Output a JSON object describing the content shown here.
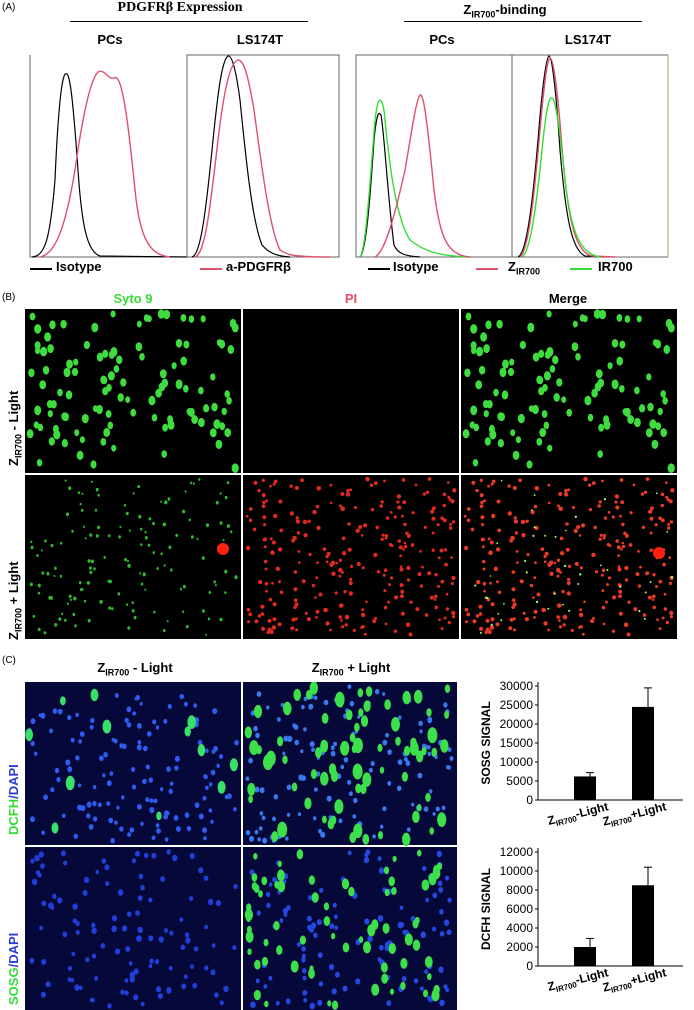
{
  "panelA": {
    "label": "(A)",
    "group1_title": "PDGFRβ Expression",
    "group2_title_main": "Z",
    "group2_title_sub": "IR700",
    "group2_title_tail": "-binding",
    "cols": [
      "PCs",
      "LS174T",
      "PCs",
      "LS174T"
    ],
    "legend1": {
      "a": "Isotype",
      "b": "a-PDGFRβ"
    },
    "legend2": {
      "a": "Isotype",
      "b_main": "Z",
      "b_sub": "IR700",
      "c": "IR700"
    },
    "colors": {
      "isotype": "#000000",
      "pdgfr": "#e0506a",
      "zir700": "#e0506a",
      "ir700": "#33dd33"
    }
  },
  "panelB": {
    "label": "(B)",
    "cols": [
      "Syto 9",
      "PI",
      "Merge"
    ],
    "col_colors": [
      "#33dd33",
      "#e0506a",
      "#000000"
    ],
    "row1": {
      "main": "Z",
      "sub": "IR700",
      "tail": "- Light"
    },
    "row2": {
      "main": "Z",
      "sub": "IR700",
      "tail": "+ Light"
    }
  },
  "panelC": {
    "label": "(C)",
    "col1": {
      "main": "Z",
      "sub": "IR700",
      "tail": "- Light"
    },
    "col2": {
      "main": "Z",
      "sub": "IR700",
      "tail": "+ Light"
    },
    "row1": {
      "green": "DCFH",
      "blue": "/DAPI"
    },
    "row2": {
      "green": "SOSG",
      "blue": "/DAPI"
    }
  },
  "chart_data": [
    {
      "type": "bar",
      "ylabel": "SOSG SIGNAL",
      "categories": [
        "ZIR700-Light",
        "ZIR700+Light"
      ],
      "values": [
        6200,
        24500
      ],
      "errors": [
        1000,
        5000
      ],
      "ylim": [
        0,
        30000
      ],
      "yticks": [
        "0",
        "5000",
        "10000",
        "15000",
        "20000",
        "25000",
        "30000"
      ],
      "xtick_main": [
        "Z",
        "Z"
      ],
      "xtick_sub": [
        "IR700",
        "IR700"
      ],
      "xtick_tail": [
        "-Light",
        "+Light"
      ]
    },
    {
      "type": "bar",
      "ylabel": "DCFH SIGNAL",
      "categories": [
        "ZIR700-Light",
        "ZIR700+Light"
      ],
      "values": [
        2000,
        8500
      ],
      "errors": [
        900,
        1900
      ],
      "ylim": [
        0,
        12000
      ],
      "yticks": [
        "0",
        "2000",
        "4000",
        "6000",
        "8000",
        "10000",
        "12000"
      ],
      "xtick_main": [
        "Z",
        "Z"
      ],
      "xtick_sub": [
        "IR700",
        "IR700"
      ],
      "xtick_tail": [
        "-Light",
        "+Light"
      ]
    }
  ]
}
